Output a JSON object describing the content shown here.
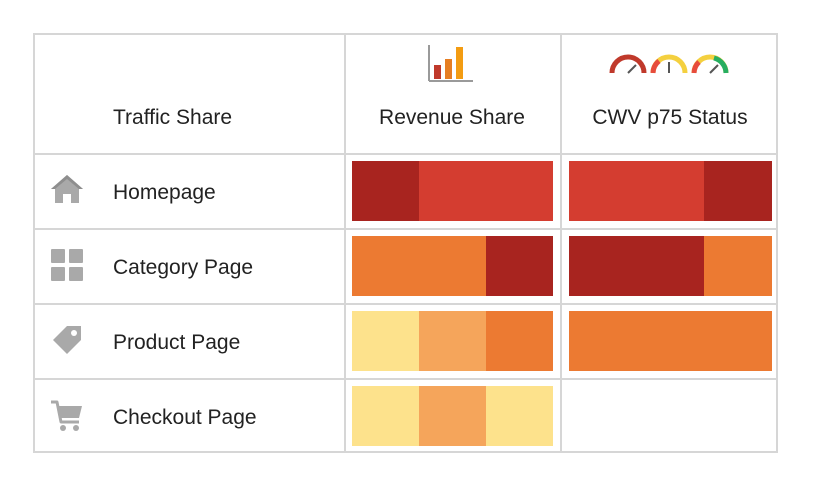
{
  "headers": {
    "col1": "Traffic Share",
    "col2": "Revenue Share",
    "col3": "CWV p75 Status"
  },
  "colors": {
    "dark_red": "#a8241f",
    "red": "#d43d30",
    "orange": "#ec7a32",
    "light_orange": "#f5a55b",
    "yellow": "#fde28c",
    "grid": "#d6d6d6",
    "icon_gray": "#a9a9a9"
  },
  "header_icons": {
    "revenue": "bar-chart-icon",
    "cwv": [
      "gauge-red-icon",
      "gauge-yellow-icon",
      "gauge-green-icon"
    ]
  },
  "rows": [
    {
      "label": "Homepage",
      "icon": "home-icon",
      "revenue_bar": [
        "dark_red",
        "red",
        "red"
      ],
      "cwv_bar": [
        "red",
        "red",
        "dark_red"
      ]
    },
    {
      "label": "Category Page",
      "icon": "grid-icon",
      "revenue_bar": [
        "orange",
        "orange",
        "dark_red"
      ],
      "cwv_bar": [
        "dark_red",
        "dark_red",
        "orange"
      ]
    },
    {
      "label": "Product Page",
      "icon": "tag-icon",
      "revenue_bar": [
        "yellow",
        "light_orange",
        "orange"
      ],
      "cwv_bar": [
        "orange",
        "orange",
        "orange"
      ]
    },
    {
      "label": "Checkout Page",
      "icon": "cart-icon",
      "revenue_bar": [
        "yellow",
        "light_orange",
        "yellow"
      ],
      "cwv_bar": []
    }
  ]
}
